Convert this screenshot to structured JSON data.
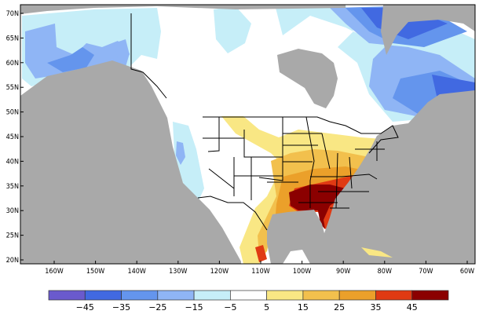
{
  "map": {
    "lat_labels": [
      "70N",
      "65N",
      "60N",
      "55N",
      "50N",
      "45N",
      "40N",
      "35N",
      "30N",
      "25N",
      "20N"
    ],
    "lat_values": [
      70,
      65,
      60,
      55,
      50,
      45,
      40,
      35,
      30,
      25,
      20
    ],
    "lon_labels": [
      "160W",
      "150W",
      "140W",
      "130W",
      "120W",
      "110W",
      "100W",
      "90W",
      "80W",
      "70W",
      "60W"
    ],
    "lon_values": [
      -160,
      -150,
      -140,
      -130,
      -120,
      -110,
      -100,
      -90,
      -80,
      -70,
      -60
    ],
    "ocean_color": "#a9a9a9",
    "land_color": "#ffffff"
  },
  "colorbar": {
    "colors": [
      "#6a5acd",
      "#4169e1",
      "#6495ed",
      "#8fb5f5",
      "#c6eef8",
      "#ffffff",
      "#f9e784",
      "#f2c04d",
      "#eba02a",
      "#e03a13",
      "#8b0000"
    ],
    "labels": [
      "−45",
      "−35",
      "−25",
      "−15",
      "−5",
      "5",
      "15",
      "25",
      "35",
      "45"
    ]
  }
}
